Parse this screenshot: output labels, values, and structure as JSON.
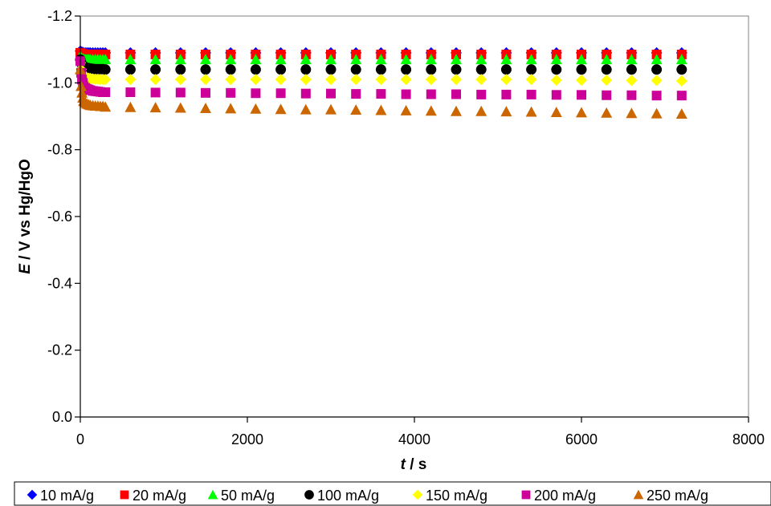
{
  "chart_data": {
    "type": "scatter",
    "xlabel_italic": "t",
    "xlabel_rest": " / s",
    "ylabel_italic": "E",
    "ylabel_rest": " / V vs Hg/HgO",
    "xlim": [
      0,
      8000
    ],
    "ylim": [
      0.0,
      -1.2
    ],
    "y_reversed": true,
    "xticks": [
      0,
      2000,
      4000,
      6000,
      8000
    ],
    "xtick_labels": [
      "0",
      "2000",
      "4000",
      "6000",
      "8000"
    ],
    "yticks": [
      0.0,
      -0.2,
      -0.4,
      -0.6,
      -0.8,
      -1.0,
      -1.2
    ],
    "ytick_labels": [
      "0.0",
      "-0.2",
      "-0.4",
      "-0.6",
      "-0.8",
      "-1.0",
      "-1.2"
    ],
    "grid": false,
    "legend_position": "bottom",
    "series": [
      {
        "name": "10 mA/g",
        "color": "#0000ff",
        "marker": "diamond",
        "x": [
          0,
          10,
          20,
          30,
          40,
          60,
          80,
          100,
          120,
          150,
          180,
          210,
          240,
          270,
          300,
          600,
          900,
          1200,
          1500,
          1800,
          2100,
          2400,
          2700,
          3000,
          3300,
          3600,
          3900,
          4200,
          4500,
          4800,
          5100,
          5400,
          5700,
          6000,
          6300,
          6600,
          6900,
          7200
        ],
        "y": [
          -1.095,
          -1.093,
          -1.092,
          -1.091,
          -1.09,
          -1.09,
          -1.09,
          -1.09,
          -1.09,
          -1.09,
          -1.09,
          -1.09,
          -1.09,
          -1.09,
          -1.09,
          -1.09,
          -1.09,
          -1.09,
          -1.09,
          -1.09,
          -1.09,
          -1.09,
          -1.09,
          -1.09,
          -1.09,
          -1.09,
          -1.09,
          -1.09,
          -1.09,
          -1.09,
          -1.09,
          -1.09,
          -1.09,
          -1.09,
          -1.09,
          -1.09,
          -1.09,
          -1.09
        ]
      },
      {
        "name": "20 mA/g",
        "color": "#ff0000",
        "marker": "square",
        "x": [
          0,
          10,
          20,
          30,
          40,
          60,
          80,
          100,
          120,
          150,
          180,
          210,
          240,
          270,
          300,
          600,
          900,
          1200,
          1500,
          1800,
          2100,
          2400,
          2700,
          3000,
          3300,
          3600,
          3900,
          4200,
          4500,
          4800,
          5100,
          5400,
          5700,
          6000,
          6300,
          6600,
          6900,
          7200
        ],
        "y": [
          -1.09,
          -1.088,
          -1.087,
          -1.086,
          -1.085,
          -1.085,
          -1.085,
          -1.085,
          -1.085,
          -1.085,
          -1.085,
          -1.085,
          -1.085,
          -1.085,
          -1.085,
          -1.085,
          -1.085,
          -1.085,
          -1.085,
          -1.085,
          -1.085,
          -1.085,
          -1.085,
          -1.085,
          -1.085,
          -1.085,
          -1.085,
          -1.085,
          -1.085,
          -1.085,
          -1.085,
          -1.085,
          -1.085,
          -1.085,
          -1.085,
          -1.085,
          -1.085,
          -1.085
        ]
      },
      {
        "name": "50 mA/g",
        "color": "#00ff00",
        "marker": "triangle",
        "x": [
          0,
          10,
          20,
          30,
          40,
          60,
          80,
          100,
          120,
          150,
          180,
          210,
          240,
          270,
          300,
          600,
          900,
          1200,
          1500,
          1800,
          2100,
          2400,
          2700,
          3000,
          3300,
          3600,
          3900,
          4200,
          4500,
          4800,
          5100,
          5400,
          5700,
          6000,
          6300,
          6600,
          6900,
          7200
        ],
        "y": [
          -1.08,
          -1.075,
          -1.073,
          -1.072,
          -1.071,
          -1.07,
          -1.07,
          -1.07,
          -1.07,
          -1.07,
          -1.07,
          -1.07,
          -1.07,
          -1.07,
          -1.07,
          -1.07,
          -1.07,
          -1.07,
          -1.07,
          -1.07,
          -1.07,
          -1.07,
          -1.07,
          -1.07,
          -1.07,
          -1.07,
          -1.07,
          -1.07,
          -1.07,
          -1.07,
          -1.07,
          -1.07,
          -1.07,
          -1.07,
          -1.07,
          -1.07,
          -1.07,
          -1.07
        ]
      },
      {
        "name": "100 mA/g",
        "color": "#000000",
        "marker": "circle",
        "x": [
          0,
          10,
          20,
          30,
          40,
          60,
          80,
          100,
          120,
          150,
          180,
          210,
          240,
          270,
          300,
          600,
          900,
          1200,
          1500,
          1800,
          2100,
          2400,
          2700,
          3000,
          3300,
          3600,
          3900,
          4200,
          4500,
          4800,
          5100,
          5400,
          5700,
          6000,
          6300,
          6600,
          6900,
          7200
        ],
        "y": [
          -1.07,
          -1.06,
          -1.055,
          -1.052,
          -1.05,
          -1.047,
          -1.045,
          -1.044,
          -1.043,
          -1.042,
          -1.041,
          -1.041,
          -1.041,
          -1.041,
          -1.04,
          -1.04,
          -1.04,
          -1.04,
          -1.04,
          -1.04,
          -1.04,
          -1.04,
          -1.04,
          -1.04,
          -1.04,
          -1.04,
          -1.04,
          -1.04,
          -1.04,
          -1.04,
          -1.04,
          -1.04,
          -1.04,
          -1.04,
          -1.04,
          -1.04,
          -1.04,
          -1.04
        ]
      },
      {
        "name": "150 mA/g",
        "color": "#ffff00",
        "marker": "diamond",
        "x": [
          0,
          10,
          20,
          30,
          40,
          60,
          80,
          100,
          120,
          150,
          180,
          210,
          240,
          270,
          300,
          600,
          900,
          1200,
          1500,
          1800,
          2100,
          2400,
          2700,
          3000,
          3300,
          3600,
          3900,
          4200,
          4500,
          4800,
          5100,
          5400,
          5700,
          6000,
          6300,
          6600,
          6900,
          7200
        ],
        "y": [
          -1.06,
          -1.04,
          -1.03,
          -1.025,
          -1.02,
          -1.017,
          -1.015,
          -1.014,
          -1.013,
          -1.012,
          -1.011,
          -1.011,
          -1.01,
          -1.01,
          -1.01,
          -1.01,
          -1.01,
          -1.01,
          -1.01,
          -1.01,
          -1.01,
          -1.01,
          -1.01,
          -1.01,
          -1.01,
          -1.01,
          -1.01,
          -1.01,
          -1.01,
          -1.01,
          -1.01,
          -1.01,
          -1.008,
          -1.008,
          -1.008,
          -1.007,
          -1.007,
          -1.006
        ]
      },
      {
        "name": "200 mA/g",
        "color": "#cc0099",
        "marker": "square",
        "x": [
          0,
          10,
          20,
          30,
          40,
          60,
          80,
          100,
          120,
          150,
          180,
          210,
          240,
          270,
          300,
          600,
          900,
          1200,
          1500,
          1800,
          2100,
          2400,
          2700,
          3000,
          3300,
          3600,
          3900,
          4200,
          4500,
          4800,
          5100,
          5400,
          5700,
          6000,
          6300,
          6600,
          6900,
          7200
        ],
        "y": [
          -1.065,
          -1.03,
          -1.01,
          -1.0,
          -0.99,
          -0.985,
          -0.982,
          -0.98,
          -0.978,
          -0.976,
          -0.975,
          -0.974,
          -0.973,
          -0.972,
          -0.972,
          -0.972,
          -0.971,
          -0.971,
          -0.97,
          -0.97,
          -0.969,
          -0.969,
          -0.968,
          -0.968,
          -0.967,
          -0.967,
          -0.966,
          -0.966,
          -0.966,
          -0.965,
          -0.965,
          -0.965,
          -0.964,
          -0.964,
          -0.963,
          -0.963,
          -0.962,
          -0.962
        ]
      },
      {
        "name": "250 mA/g",
        "color": "#cc6600",
        "marker": "triangle",
        "x": [
          0,
          10,
          20,
          30,
          40,
          60,
          80,
          100,
          120,
          150,
          180,
          210,
          240,
          270,
          300,
          600,
          900,
          1200,
          1500,
          1800,
          2100,
          2400,
          2700,
          3000,
          3300,
          3600,
          3900,
          4200,
          4500,
          4800,
          5100,
          5400,
          5700,
          6000,
          6300,
          6600,
          6900,
          7200
        ],
        "y": [
          -1.04,
          -0.99,
          -0.97,
          -0.955,
          -0.945,
          -0.94,
          -0.937,
          -0.935,
          -0.933,
          -0.932,
          -0.931,
          -0.931,
          -0.93,
          -0.93,
          -0.928,
          -0.927,
          -0.926,
          -0.925,
          -0.924,
          -0.923,
          -0.922,
          -0.921,
          -0.92,
          -0.92,
          -0.919,
          -0.918,
          -0.917,
          -0.916,
          -0.915,
          -0.915,
          -0.914,
          -0.913,
          -0.912,
          -0.911,
          -0.91,
          -0.909,
          -0.908,
          -0.907
        ]
      }
    ]
  }
}
